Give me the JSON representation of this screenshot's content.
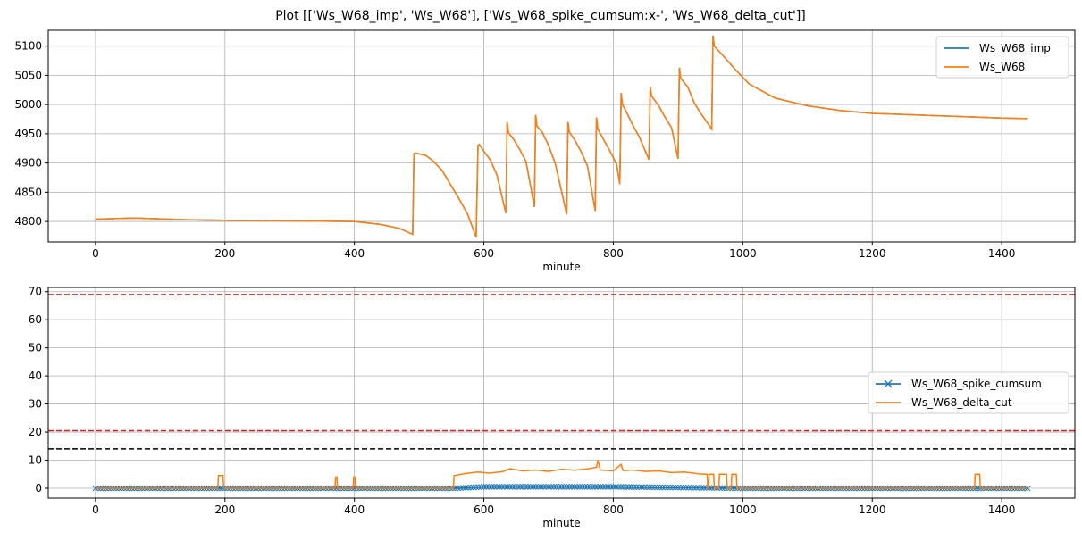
{
  "figure": {
    "title": "Plot [['Ws_W68_imp', 'Ws_W68'], ['Ws_W68_spike_cumsum:x-', 'Ws_W68_delta_cut']]"
  },
  "colors": {
    "blue": "#1f77b4",
    "orange": "#ff7f0e",
    "red": "#d62728",
    "black": "#000000",
    "grid": "#b0b0b0"
  },
  "chart_data": [
    {
      "type": "line",
      "xlabel": "minute",
      "ylabel": "",
      "xlim": [
        -73,
        1513
      ],
      "ylim": [
        4765,
        5127
      ],
      "xticks": [
        0,
        200,
        400,
        600,
        800,
        1000,
        1200,
        1400
      ],
      "yticks": [
        4800,
        4850,
        4900,
        4950,
        5000,
        5050,
        5100
      ],
      "grid": true,
      "legend": "top-right",
      "series": [
        {
          "name": "Ws_W68_imp",
          "color": "#1f77b4",
          "x": [
            0,
            60,
            140,
            200,
            300,
            400,
            440,
            470,
            490,
            492,
            495,
            510,
            520,
            535,
            560,
            575,
            588,
            591,
            593,
            600,
            610,
            620,
            634,
            636,
            638,
            645,
            655,
            665,
            678,
            680,
            682,
            690,
            700,
            710,
            728,
            730,
            732,
            740,
            750,
            760,
            772,
            774,
            776,
            785,
            795,
            805,
            810,
            812,
            814,
            820,
            830,
            840,
            855,
            857,
            859,
            870,
            880,
            890,
            900,
            902,
            904,
            915,
            925,
            935,
            952,
            954,
            956,
            970,
            990,
            1010,
            1050,
            1100,
            1150,
            1200,
            1250,
            1300,
            1350,
            1400,
            1440
          ],
          "values": [
            4804,
            4806,
            4803,
            4802,
            4801,
            4800,
            4795,
            4788,
            4778,
            4916,
            4917,
            4913,
            4905,
            4888,
            4842,
            4812,
            4773,
            4930,
            4932,
            4920,
            4905,
            4880,
            4814,
            4970,
            4952,
            4942,
            4924,
            4903,
            4825,
            4982,
            4963,
            4953,
            4930,
            4900,
            4812,
            4970,
            4953,
            4940,
            4920,
            4895,
            4818,
            4978,
            4958,
            4940,
            4920,
            4898,
            4864,
            5020,
            5000,
            4988,
            4965,
            4945,
            4906,
            5030,
            5015,
            4998,
            4978,
            4960,
            4907,
            5063,
            5045,
            5030,
            5003,
            4985,
            4958,
            5118,
            5100,
            5083,
            5058,
            5035,
            5011,
            4998,
            4990,
            4985,
            4983,
            4981,
            4979,
            4977,
            4976
          ]
        },
        {
          "name": "Ws_W68",
          "color": "#ff7f0e",
          "x": [
            0,
            60,
            140,
            200,
            300,
            400,
            440,
            470,
            490,
            492,
            495,
            510,
            520,
            535,
            560,
            575,
            588,
            591,
            593,
            600,
            610,
            620,
            634,
            636,
            638,
            645,
            655,
            665,
            678,
            680,
            682,
            690,
            700,
            710,
            728,
            730,
            732,
            740,
            750,
            760,
            772,
            774,
            776,
            785,
            795,
            805,
            810,
            812,
            814,
            820,
            830,
            840,
            855,
            857,
            859,
            870,
            880,
            890,
            900,
            902,
            904,
            915,
            925,
            935,
            952,
            954,
            956,
            970,
            990,
            1010,
            1050,
            1100,
            1150,
            1200,
            1250,
            1300,
            1350,
            1400,
            1440
          ],
          "values": [
            4804,
            4806,
            4803,
            4802,
            4801,
            4800,
            4795,
            4788,
            4778,
            4916,
            4917,
            4913,
            4905,
            4888,
            4842,
            4812,
            4773,
            4930,
            4932,
            4920,
            4905,
            4880,
            4814,
            4970,
            4952,
            4942,
            4924,
            4903,
            4825,
            4982,
            4963,
            4953,
            4930,
            4900,
            4812,
            4970,
            4953,
            4940,
            4920,
            4895,
            4818,
            4978,
            4958,
            4940,
            4920,
            4898,
            4864,
            5020,
            5000,
            4988,
            4965,
            4945,
            4906,
            5030,
            5015,
            4998,
            4978,
            4960,
            4907,
            5063,
            5045,
            5030,
            5003,
            4985,
            4958,
            5118,
            5100,
            5083,
            5058,
            5035,
            5011,
            4998,
            4990,
            4985,
            4983,
            4981,
            4979,
            4977,
            4976
          ]
        }
      ]
    },
    {
      "type": "line",
      "xlabel": "minute",
      "ylabel": "",
      "xlim": [
        -73,
        1513
      ],
      "ylim": [
        -3.5,
        71.5
      ],
      "xticks": [
        0,
        200,
        400,
        600,
        800,
        1000,
        1200,
        1400
      ],
      "yticks": [
        0,
        10,
        20,
        30,
        40,
        50,
        60,
        70
      ],
      "grid": true,
      "legend": "center-right",
      "hlines": [
        {
          "y": 69,
          "color": "#d62728",
          "style": "dashed"
        },
        {
          "y": 20.5,
          "color": "#d62728",
          "style": "dashed"
        },
        {
          "y": 14,
          "color": "#000000",
          "style": "dashed"
        }
      ],
      "series": [
        {
          "name": "Ws_W68_spike_cumsum",
          "color": "#1f77b4",
          "marker": "x",
          "x": [
            0,
            200,
            400,
            555,
            600,
            800,
            1000,
            1200,
            1440
          ],
          "values": [
            0,
            0,
            0,
            0,
            0.5,
            0.5,
            0,
            0,
            0
          ]
        },
        {
          "name": "Ws_W68_delta_cut",
          "color": "#ff7f0e",
          "x": [
            0,
            189,
            190,
            197,
            198,
            370,
            371,
            373,
            374,
            398,
            399,
            401,
            402,
            553,
            554,
            570,
            590,
            610,
            630,
            640,
            660,
            680,
            700,
            720,
            740,
            760,
            774,
            776,
            780,
            800,
            812,
            815,
            830,
            850,
            870,
            890,
            910,
            930,
            940,
            945,
            946,
            947,
            948,
            955,
            956,
            963,
            964,
            975,
            976,
            982,
            983,
            990,
            991,
            996,
            997,
            1358,
            1359,
            1366,
            1367,
            1440
          ],
          "values": [
            0,
            0,
            4.5,
            4.5,
            0,
            0,
            4,
            4,
            0,
            0,
            4,
            4,
            0,
            0,
            4.5,
            5.2,
            5.8,
            5.4,
            6.0,
            7.0,
            6.2,
            6.5,
            6.0,
            6.8,
            6.4,
            6.9,
            7.5,
            10,
            6.5,
            6.2,
            8.5,
            6.3,
            6.5,
            6.0,
            6.2,
            5.6,
            5.8,
            5.2,
            5.0,
            5.0,
            0,
            0,
            5.0,
            5.0,
            0,
            0,
            5.0,
            5.0,
            0,
            0,
            5.0,
            5.0,
            0,
            0,
            0,
            0,
            5.0,
            5.0,
            0,
            0
          ]
        }
      ]
    }
  ]
}
